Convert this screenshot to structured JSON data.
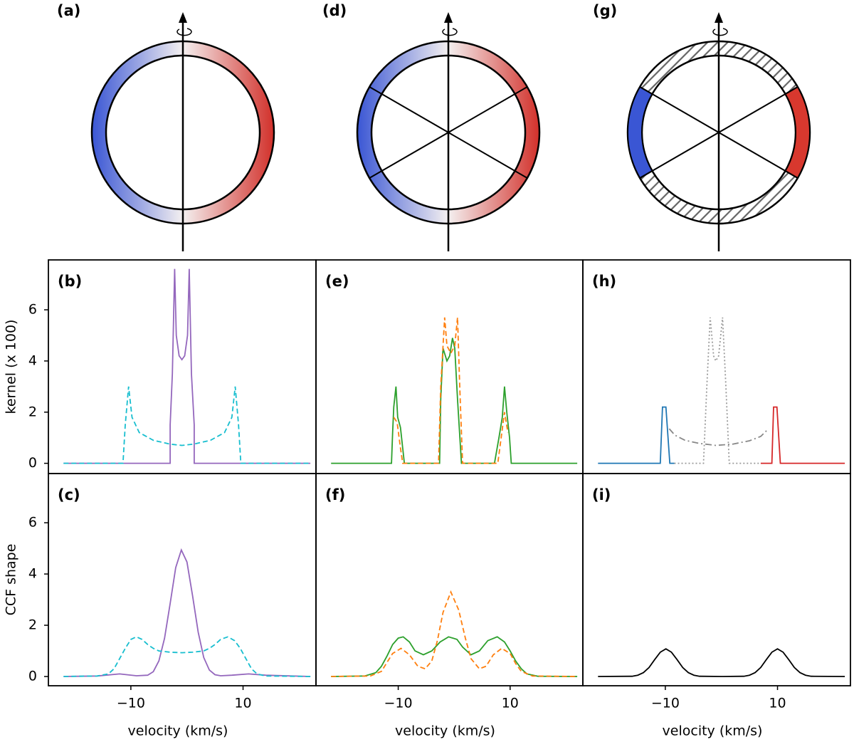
{
  "diagrams": [
    "(a)",
    "(d)",
    "(g)"
  ],
  "chart_data": [
    {
      "type": "line",
      "panel": "(b)",
      "ylabel": "kernel (x 100)",
      "xlim": [
        -24.7,
        23.0
      ],
      "ylim": [
        -0.4,
        7.95
      ],
      "yticks": [
        0,
        2,
        4,
        6
      ],
      "series": [
        {
          "color": "#9467bd",
          "style": "solid",
          "x": [
            -22,
            -3.0,
            -3.0,
            -2.6,
            -2.2,
            -1.9,
            -1.4,
            -0.9,
            -0.4,
            0.1,
            0.4,
            0.8,
            1.3,
            1.3,
            22
          ],
          "values": [
            0,
            0,
            1.5,
            3.5,
            7.6,
            5.0,
            4.2,
            4.05,
            4.2,
            5.0,
            7.6,
            3.5,
            1.5,
            0,
            0
          ]
        },
        {
          "color": "#17becf",
          "style": "dashed",
          "x": [
            -22,
            -11.4,
            -11.0,
            -10.4,
            -9.8,
            -8.5,
            -6,
            -3,
            -0.9,
            1.2,
            4.2,
            6.7,
            8.0,
            8.6,
            9.2,
            9.6,
            22
          ],
          "values": [
            0,
            0,
            1.5,
            3.0,
            1.8,
            1.2,
            0.9,
            0.75,
            0.7,
            0.75,
            0.9,
            1.2,
            1.8,
            3.0,
            1.5,
            0,
            0
          ]
        }
      ]
    },
    {
      "type": "line",
      "panel": "(e)",
      "xlim": [
        -24.7,
        23.0
      ],
      "ylim": [
        -0.4,
        7.95
      ],
      "series": [
        {
          "color": "#2ca02c",
          "style": "solid",
          "x": [
            -22,
            -11.2,
            -11.0,
            -10.8,
            -10.4,
            -10.1,
            -9.6,
            -8.9,
            -2.6,
            -2.4,
            -2.0,
            -1.3,
            -0.8,
            -0.3,
            0.1,
            0.6,
            1.3,
            7.2,
            8.0,
            8.6,
            9.0,
            9.4,
            9.9,
            10.2,
            22
          ],
          "values": [
            0,
            0,
            1.2,
            2.2,
            3.0,
            1.8,
            1.4,
            0,
            0,
            2.5,
            4.5,
            4.0,
            4.2,
            4.9,
            4.5,
            2.5,
            0,
            0,
            1.0,
            1.8,
            3.0,
            2.0,
            1.0,
            0,
            0
          ]
        },
        {
          "color": "#ff7f0e",
          "style": "dashed",
          "x": [
            -10.8,
            -10.2,
            -9.6,
            -9.2,
            -2.8,
            -2.4,
            -1.7,
            -1.3,
            -0.6,
            0.1,
            0.6,
            1.0,
            1.5,
            7.8,
            8.4,
            9.0,
            9.6
          ],
          "values": [
            1.8,
            1.6,
            0.6,
            0,
            0,
            3.0,
            5.7,
            4.6,
            4.3,
            4.6,
            5.7,
            3.0,
            0,
            0,
            1.0,
            2.0,
            1.2
          ]
        }
      ]
    },
    {
      "type": "line",
      "panel": "(h)",
      "xlim": [
        -24.7,
        23.0
      ],
      "ylim": [
        -0.4,
        7.95
      ],
      "series": [
        {
          "color": "#1f77b4",
          "style": "solid",
          "x": [
            -22,
            -10.9,
            -10.5,
            -9.9,
            -9.2,
            -8.4
          ],
          "values": [
            0,
            0,
            2.2,
            2.2,
            0,
            0
          ]
        },
        {
          "color": "#d62728",
          "style": "solid",
          "x": [
            7.0,
            9.0,
            9.3,
            9.9,
            10.5,
            22
          ],
          "values": [
            0,
            0,
            2.2,
            2.2,
            0,
            0
          ]
        },
        {
          "color": "#999999",
          "style": "dotted",
          "x": [
            -8.4,
            -3.2,
            -2.6,
            -2.0,
            -1.4,
            -1.0,
            -0.5,
            0.2,
            0.8,
            1.4,
            7.0
          ],
          "values": [
            0,
            0,
            3.0,
            5.7,
            4.2,
            4.0,
            4.2,
            5.7,
            3.0,
            0,
            0
          ]
        },
        {
          "color": "#888888",
          "style": "dashdot",
          "x": [
            -9.3,
            -8.3,
            -6.5,
            -4,
            -1,
            2,
            5,
            7,
            8.4
          ],
          "values": [
            1.35,
            1.1,
            0.9,
            0.78,
            0.7,
            0.75,
            0.88,
            1.05,
            1.35
          ]
        }
      ]
    },
    {
      "type": "line",
      "panel": "(c)",
      "ylabel": "CCF shape",
      "xlabel": "velocity (km/s)",
      "xlim": [
        -24.7,
        23.0
      ],
      "ylim": [
        -0.36,
        7.92
      ],
      "yticks": [
        0,
        2,
        4,
        6
      ],
      "xticks": [
        {
          "value": -10,
          "label": "−10"
        },
        10
      ],
      "series": [
        {
          "color": "#9467bd",
          "style": "solid",
          "x": [
            -22,
            -16,
            -12,
            -9,
            -7,
            -6,
            -5,
            -4,
            -3,
            -2,
            -1,
            0,
            1,
            2,
            3,
            4,
            5,
            6,
            8,
            11,
            14,
            22
          ],
          "values": [
            0,
            0.02,
            0.1,
            0.03,
            0.05,
            0.19,
            0.61,
            1.49,
            2.85,
            4.25,
            4.94,
            4.47,
            3.15,
            1.73,
            0.74,
            0.25,
            0.07,
            0.03,
            0.05,
            0.1,
            0.05,
            0
          ]
        },
        {
          "color": "#17becf",
          "style": "dashed",
          "x": [
            -22,
            -16,
            -14,
            -13,
            -12,
            -11,
            -10,
            -9,
            -8,
            -7,
            -6,
            -5,
            -3,
            -0.9,
            1,
            3,
            4,
            5,
            6,
            7.3,
            8.5,
            9.5,
            10.5,
            11.5,
            12.5,
            14,
            22
          ],
          "values": [
            0,
            0.02,
            0.1,
            0.3,
            0.7,
            1.1,
            1.45,
            1.55,
            1.45,
            1.25,
            1.1,
            1.0,
            0.95,
            0.93,
            0.95,
            1.0,
            1.1,
            1.25,
            1.45,
            1.55,
            1.4,
            1.1,
            0.7,
            0.3,
            0.1,
            0.02,
            0
          ]
        }
      ]
    },
    {
      "type": "line",
      "panel": "(f)",
      "xlabel": "velocity (km/s)",
      "xlim": [
        -24.7,
        23.0
      ],
      "ylim": [
        -0.36,
        7.92
      ],
      "xticks": [
        {
          "value": -10,
          "label": "−10"
        },
        10
      ],
      "series": [
        {
          "color": "#2ca02c",
          "style": "solid",
          "x": [
            -22,
            -16,
            -14,
            -13,
            -12,
            -11,
            -10,
            -9.1,
            -8,
            -7,
            -5.5,
            -4,
            -2.5,
            -1,
            0.5,
            1.5,
            3,
            4.5,
            6,
            7.7,
            9,
            10,
            11,
            12,
            13,
            15,
            22
          ],
          "values": [
            0,
            0.02,
            0.15,
            0.4,
            0.8,
            1.25,
            1.5,
            1.55,
            1.35,
            1.0,
            0.85,
            1.0,
            1.35,
            1.55,
            1.45,
            1.15,
            0.85,
            1.0,
            1.4,
            1.55,
            1.35,
            1.0,
            0.6,
            0.3,
            0.1,
            0.01,
            0
          ]
        },
        {
          "color": "#ff7f0e",
          "style": "dashed",
          "x": [
            -22,
            -15,
            -13,
            -12,
            -11,
            -9.5,
            -8,
            -6.5,
            -5.2,
            -4,
            -3,
            -2,
            -0.6,
            0.8,
            2,
            3,
            4.5,
            5.7,
            7,
            8.5,
            10,
            11,
            12,
            14,
            22
          ],
          "values": [
            0,
            0.02,
            0.2,
            0.55,
            0.9,
            1.1,
            0.85,
            0.4,
            0.3,
            0.6,
            1.4,
            2.5,
            3.3,
            2.6,
            1.5,
            0.7,
            0.3,
            0.4,
            0.85,
            1.1,
            0.9,
            0.5,
            0.2,
            0.02,
            0
          ]
        }
      ]
    },
    {
      "type": "line",
      "panel": "(i)",
      "xlabel": "velocity (km/s)",
      "xlim": [
        -24.7,
        23.0
      ],
      "ylim": [
        -0.36,
        7.92
      ],
      "xticks": [
        {
          "value": -10,
          "label": "−10"
        },
        10
      ],
      "series": [
        {
          "color": "#000000",
          "style": "solid",
          "x": [
            -22,
            -15.9,
            -14.9,
            -13.9,
            -12.9,
            -11.9,
            -10.9,
            -9.9,
            -8.9,
            -7.9,
            -6.9,
            -5.9,
            -4.9,
            -3.9,
            0,
            4,
            5,
            6,
            7,
            8,
            9,
            10,
            11,
            12,
            13,
            14,
            15,
            16,
            22
          ],
          "values": [
            0,
            0.01,
            0.05,
            0.15,
            0.35,
            0.66,
            0.95,
            1.08,
            0.95,
            0.66,
            0.35,
            0.15,
            0.05,
            0.01,
            0,
            0.01,
            0.05,
            0.15,
            0.35,
            0.66,
            0.95,
            1.08,
            0.95,
            0.66,
            0.35,
            0.15,
            0.05,
            0.01,
            0
          ]
        }
      ]
    }
  ]
}
